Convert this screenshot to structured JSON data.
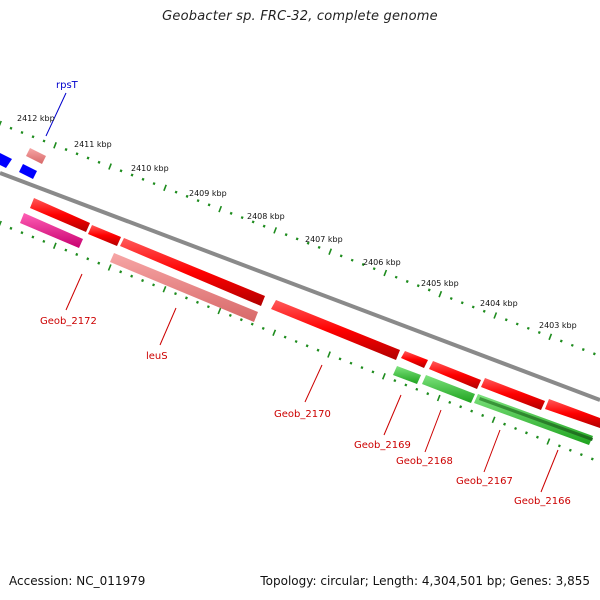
{
  "title": "Geobacter sp. FRC-32, complete genome",
  "footer": {
    "accession": "Accession: NC_011979",
    "topology": "Topology: circular; Length: 4,304,501 bp; Genes: 3,855"
  },
  "kbp_labels": [
    "2412 kbp",
    "2411 kbp",
    "2410 kbp",
    "2409 kbp",
    "2408 kbp",
    "2407 kbp",
    "2406 kbp",
    "2405 kbp",
    "2404 kbp",
    "2403 kbp"
  ],
  "gene_labels": [
    {
      "text": "rpsT",
      "color": "#0000cc"
    },
    {
      "text": "Geob_2172",
      "color": "#cc0000"
    },
    {
      "text": "leuS",
      "color": "#cc0000"
    },
    {
      "text": "Geob_2170",
      "color": "#cc0000"
    },
    {
      "text": "Geob_2169",
      "color": "#cc0000"
    },
    {
      "text": "Geob_2168",
      "color": "#cc0000"
    },
    {
      "text": "Geob_2167",
      "color": "#cc0000"
    },
    {
      "text": "Geob_2166",
      "color": "#cc0000"
    }
  ],
  "colors": {
    "cds": "#ff0000",
    "cds_light": "#f08080",
    "magenta": "#e8168c",
    "blue": "#0000ff",
    "green": "#33cc33",
    "backbone": "#888888",
    "ticks": "#1e8c1e",
    "label_red": "#cc0000",
    "label_blue": "#0000cc"
  }
}
